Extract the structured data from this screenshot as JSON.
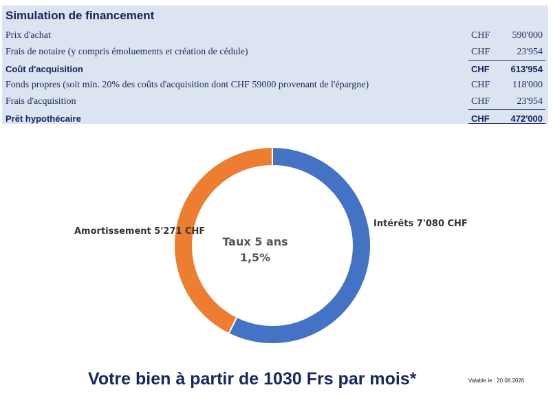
{
  "table": {
    "title": "Simulation de financement",
    "rows": [
      {
        "label": "Prix d'achat",
        "currency": "CHF",
        "value": "590'000"
      },
      {
        "label": "Frais de notaire (y compris émoluements et création de cédule)",
        "currency": "CHF",
        "value": "23'954"
      },
      {
        "label": "Coût d'acquisition",
        "currency": "CHF",
        "value": "613'954"
      },
      {
        "label": "Fonds propres (soit min. 20% des coûts d'acquisition dont CHF 59000 provenant de l'épargne)",
        "currency": "CHF",
        "value": "118'000"
      },
      {
        "label": "Frais d'acquisition",
        "currency": "CHF",
        "value": "23'954"
      },
      {
        "label": "Prêt hypothécaire",
        "currency": "CHF",
        "value": "472'000"
      }
    ]
  },
  "chart_data": {
    "type": "pie",
    "variant": "donut",
    "center_text": [
      "Taux 5 ans",
      "1,5%"
    ],
    "slices": [
      {
        "label": "Intérêts  7'080  CHF",
        "value": 7080,
        "color": "#4472c4"
      },
      {
        "label": "Amortissement  5'271  CHF",
        "value": 5271,
        "color": "#ed7d31"
      }
    ]
  },
  "footer": {
    "headline": "Votre bien à partir de 1030 Frs par mois*",
    "valid_note": "Valable le : 20.08.2026"
  }
}
